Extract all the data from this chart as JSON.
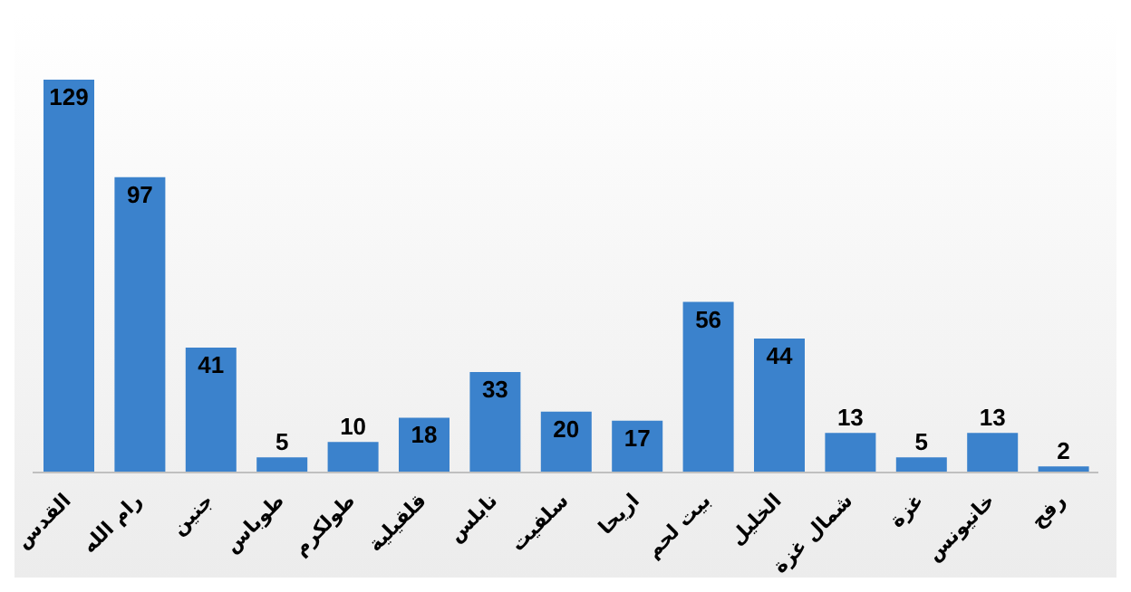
{
  "chart_data": {
    "type": "bar",
    "categories": [
      "القدس",
      "رام الله",
      "جنين",
      "طوباس",
      "طولكرم",
      "قلقيلية",
      "نابلس",
      "سلفيت",
      "اريحا",
      "بيت لحم",
      "الخليل",
      "شمال غزة",
      "غزة",
      "خانيونس",
      "رفح"
    ],
    "values": [
      129,
      97,
      41,
      5,
      10,
      18,
      33,
      20,
      17,
      56,
      44,
      13,
      5,
      13,
      2
    ],
    "color": "#3b82cc",
    "data_labels": true,
    "ylim": [
      0,
      129
    ],
    "tick_labels": "x"
  }
}
